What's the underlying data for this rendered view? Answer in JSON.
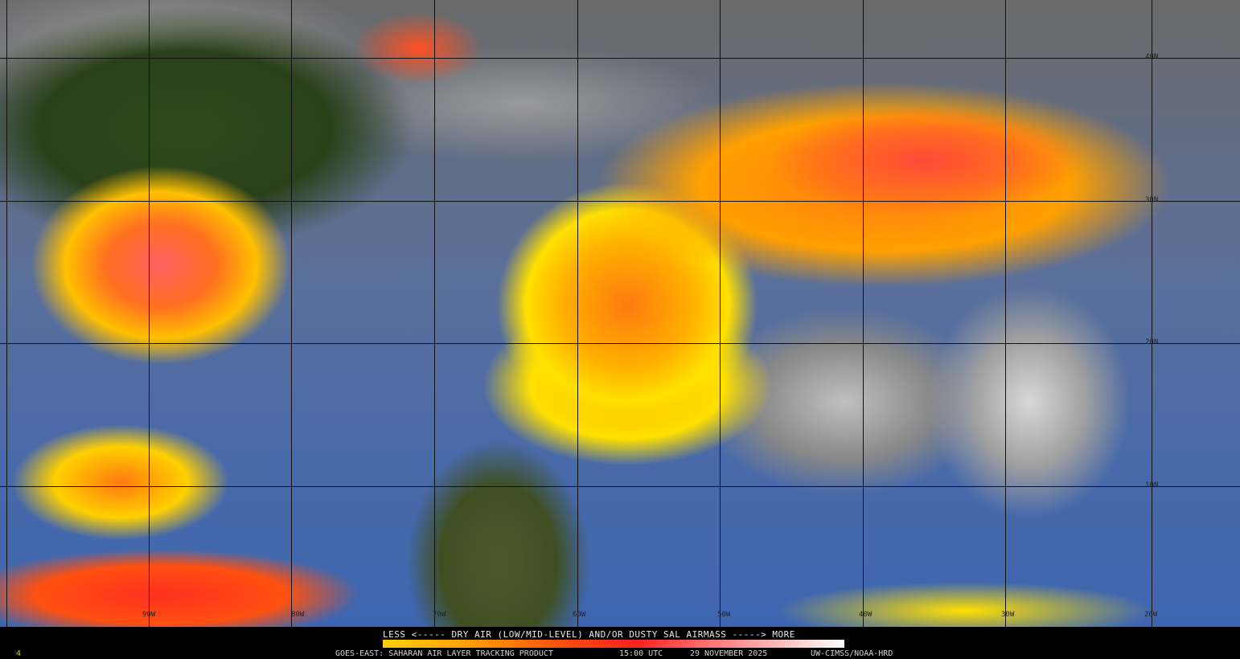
{
  "map": {
    "satellite_product": "GOES-EAST: SAHARAN AIR LAYER TRACKING PRODUCT",
    "latitude_labels": [
      "40N",
      "30N",
      "20N",
      "10N"
    ],
    "longitude_labels": [
      "90W",
      "80W",
      "70W",
      "60W",
      "50W",
      "40W",
      "30W",
      "20W"
    ]
  },
  "legend": {
    "scale_caption": "LESS <----- DRY AIR (LOW/MID-LEVEL) AND/OR DUSTY SAL AIRMASS -----> MORE",
    "colorbar_colors": [
      "#ffd000",
      "#ff9a00",
      "#ff4a10",
      "#ff2020",
      "#ff7070",
      "#ffb8b8",
      "#ffffff"
    ]
  },
  "footer": {
    "product": "GOES-EAST: SAHARAN AIR LAYER TRACKING PRODUCT",
    "time": "15:00 UTC",
    "date": "29 NOVEMBER 2025",
    "credit": "UW-CIMSS/NOAA-HRD",
    "frame_marker": "4"
  }
}
